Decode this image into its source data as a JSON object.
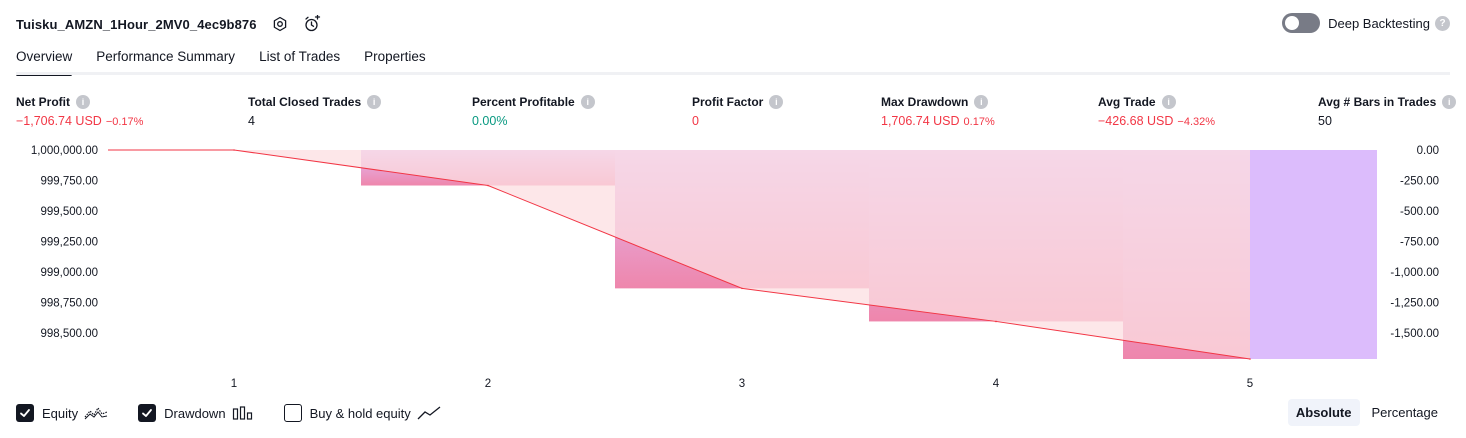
{
  "header": {
    "strategy_name": "Tuisku_AMZN_1Hour_2MV0_4ec9b876",
    "deep_backtesting_label": "Deep Backtesting",
    "deep_backtesting_on": false
  },
  "tabs": [
    {
      "label": "Overview",
      "active": true
    },
    {
      "label": "Performance Summary",
      "active": false
    },
    {
      "label": "List of Trades",
      "active": false
    },
    {
      "label": "Properties",
      "active": false
    }
  ],
  "metrics": {
    "net_profit": {
      "label": "Net Profit",
      "value": "−1,706.74 USD",
      "sub": "−0.17%"
    },
    "total_closed_trades": {
      "label": "Total Closed Trades",
      "value": "4"
    },
    "percent_profitable": {
      "label": "Percent Profitable",
      "value": "0.00%"
    },
    "profit_factor": {
      "label": "Profit Factor",
      "value": "0"
    },
    "max_drawdown": {
      "label": "Max Drawdown",
      "value": "1,706.74 USD",
      "sub": "0.17%"
    },
    "avg_trade": {
      "label": "Avg Trade",
      "value": "−426.68 USD",
      "sub": "−4.32%"
    },
    "avg_bars": {
      "label": "Avg # Bars in Trades",
      "value": "50"
    }
  },
  "colors": {
    "negative": "#f23645",
    "positive": "#089981",
    "equity_line": "#f23645",
    "equity_fill": "#fcdfe1",
    "drawdown_top": "#e1bff9",
    "drawdown_bottom": "#ee86ac",
    "drawdown_light": "#dcbcfc"
  },
  "chart_data": {
    "type": "line",
    "x": [
      1,
      2,
      3,
      4,
      5
    ],
    "equity": [
      1000000.0,
      999710.0,
      998870.0,
      998600.0,
      998293.26
    ],
    "drawdown": [
      0.0,
      -290.0,
      -1130.0,
      -1400.0,
      -1706.74
    ],
    "left_ticks": [
      "1,000,000.00",
      "999,750.00",
      "999,500.00",
      "999,250.00",
      "999,000.00",
      "998,750.00",
      "998,500.00"
    ],
    "right_ticks": [
      "0.00",
      "-250.00",
      "-500.00",
      "-750.00",
      "-1,000.00",
      "-1,250.00",
      "-1,500.00"
    ],
    "x_ticks": [
      "1",
      "2",
      "3",
      "4",
      "5"
    ],
    "left_ylim": [
      998293.26,
      1000000.0
    ],
    "right_ylim": [
      -1706.74,
      0
    ]
  },
  "legend": {
    "equity": {
      "label": "Equity",
      "checked": true
    },
    "drawdown": {
      "label": "Drawdown",
      "checked": true
    },
    "buy_hold": {
      "label": "Buy & hold equity",
      "checked": false
    }
  },
  "mode": {
    "absolute": "Absolute",
    "percentage": "Percentage",
    "active": "absolute"
  }
}
